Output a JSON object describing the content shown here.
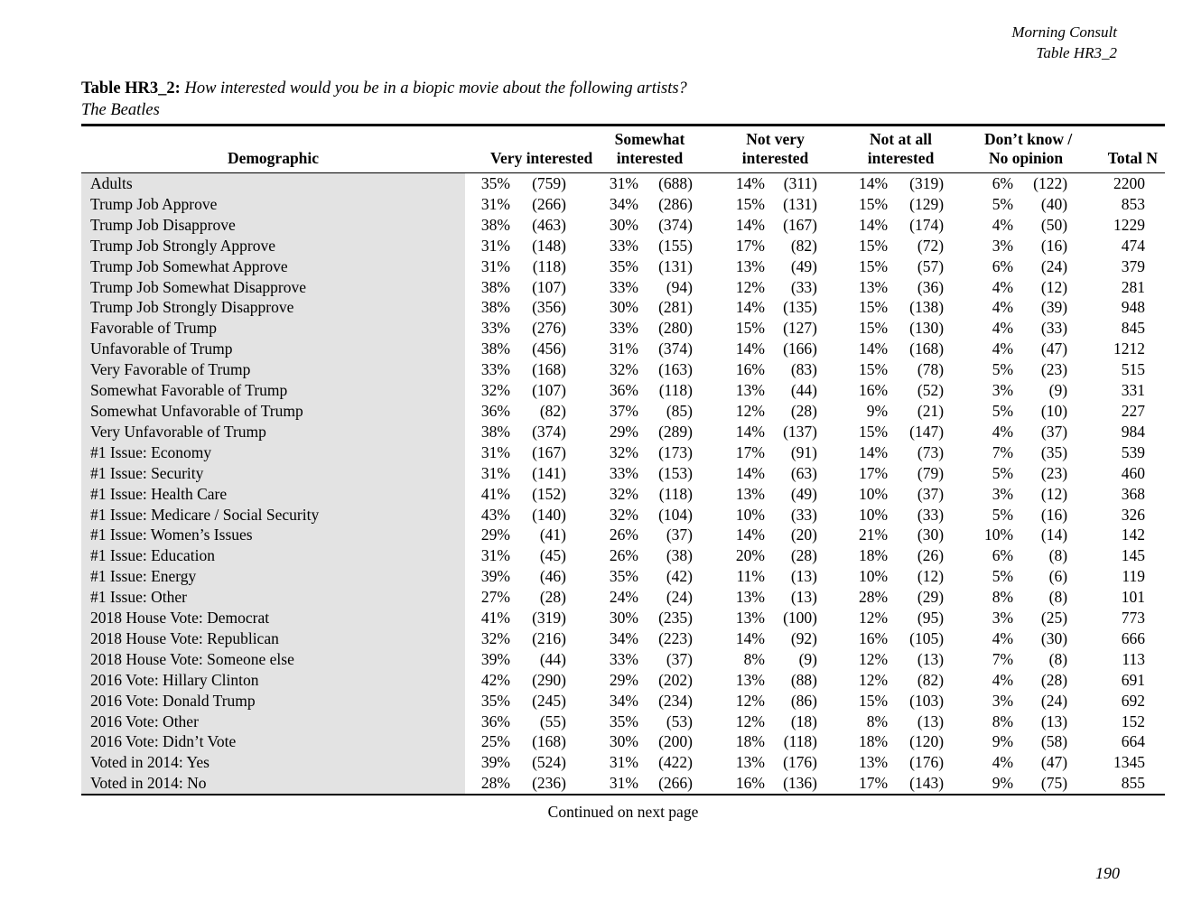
{
  "corner": {
    "publisher": "Morning Consult",
    "table_ref": "Table HR3_2"
  },
  "title": {
    "prefix": "Table HR3_2:",
    "question": "How interested would you be in a biopic movie about the following artists?",
    "subject": "The Beatles"
  },
  "table": {
    "headers": {
      "demographic": "Demographic",
      "groups": [
        {
          "line1": "",
          "line2": "Very interested"
        },
        {
          "line1": "Somewhat",
          "line2": "interested"
        },
        {
          "line1": "Not very",
          "line2": "interested"
        },
        {
          "line1": "Not at all",
          "line2": "interested"
        },
        {
          "line1": "Don’t know /",
          "line2": "No opinion"
        }
      ],
      "total": "Total N"
    },
    "rows": [
      {
        "demographic": "Adults",
        "values": [
          "35%",
          "(759)",
          "31%",
          "(688)",
          "14%",
          "(311)",
          "14%",
          "(319)",
          "6%",
          "(122)",
          "2200"
        ]
      },
      {
        "demographic": "Trump Job Approve",
        "values": [
          "31%",
          "(266)",
          "34%",
          "(286)",
          "15%",
          "(131)",
          "15%",
          "(129)",
          "5%",
          "(40)",
          "853"
        ]
      },
      {
        "demographic": "Trump Job Disapprove",
        "values": [
          "38%",
          "(463)",
          "30%",
          "(374)",
          "14%",
          "(167)",
          "14%",
          "(174)",
          "4%",
          "(50)",
          "1229"
        ]
      },
      {
        "demographic": "Trump Job Strongly Approve",
        "values": [
          "31%",
          "(148)",
          "33%",
          "(155)",
          "17%",
          "(82)",
          "15%",
          "(72)",
          "3%",
          "(16)",
          "474"
        ]
      },
      {
        "demographic": "Trump Job Somewhat Approve",
        "values": [
          "31%",
          "(118)",
          "35%",
          "(131)",
          "13%",
          "(49)",
          "15%",
          "(57)",
          "6%",
          "(24)",
          "379"
        ]
      },
      {
        "demographic": "Trump Job Somewhat Disapprove",
        "values": [
          "38%",
          "(107)",
          "33%",
          "(94)",
          "12%",
          "(33)",
          "13%",
          "(36)",
          "4%",
          "(12)",
          "281"
        ]
      },
      {
        "demographic": "Trump Job Strongly Disapprove",
        "values": [
          "38%",
          "(356)",
          "30%",
          "(281)",
          "14%",
          "(135)",
          "15%",
          "(138)",
          "4%",
          "(39)",
          "948"
        ]
      },
      {
        "demographic": "Favorable of Trump",
        "values": [
          "33%",
          "(276)",
          "33%",
          "(280)",
          "15%",
          "(127)",
          "15%",
          "(130)",
          "4%",
          "(33)",
          "845"
        ]
      },
      {
        "demographic": "Unfavorable of Trump",
        "values": [
          "38%",
          "(456)",
          "31%",
          "(374)",
          "14%",
          "(166)",
          "14%",
          "(168)",
          "4%",
          "(47)",
          "1212"
        ]
      },
      {
        "demographic": "Very Favorable of Trump",
        "values": [
          "33%",
          "(168)",
          "32%",
          "(163)",
          "16%",
          "(83)",
          "15%",
          "(78)",
          "5%",
          "(23)",
          "515"
        ]
      },
      {
        "demographic": "Somewhat Favorable of Trump",
        "values": [
          "32%",
          "(107)",
          "36%",
          "(118)",
          "13%",
          "(44)",
          "16%",
          "(52)",
          "3%",
          "(9)",
          "331"
        ]
      },
      {
        "demographic": "Somewhat Unfavorable of Trump",
        "values": [
          "36%",
          "(82)",
          "37%",
          "(85)",
          "12%",
          "(28)",
          "9%",
          "(21)",
          "5%",
          "(10)",
          "227"
        ]
      },
      {
        "demographic": "Very Unfavorable of Trump",
        "values": [
          "38%",
          "(374)",
          "29%",
          "(289)",
          "14%",
          "(137)",
          "15%",
          "(147)",
          "4%",
          "(37)",
          "984"
        ]
      },
      {
        "demographic": "#1 Issue: Economy",
        "values": [
          "31%",
          "(167)",
          "32%",
          "(173)",
          "17%",
          "(91)",
          "14%",
          "(73)",
          "7%",
          "(35)",
          "539"
        ]
      },
      {
        "demographic": "#1 Issue: Security",
        "values": [
          "31%",
          "(141)",
          "33%",
          "(153)",
          "14%",
          "(63)",
          "17%",
          "(79)",
          "5%",
          "(23)",
          "460"
        ]
      },
      {
        "demographic": "#1 Issue: Health Care",
        "values": [
          "41%",
          "(152)",
          "32%",
          "(118)",
          "13%",
          "(49)",
          "10%",
          "(37)",
          "3%",
          "(12)",
          "368"
        ]
      },
      {
        "demographic": "#1 Issue: Medicare / Social Security",
        "values": [
          "43%",
          "(140)",
          "32%",
          "(104)",
          "10%",
          "(33)",
          "10%",
          "(33)",
          "5%",
          "(16)",
          "326"
        ]
      },
      {
        "demographic": "#1 Issue: Women’s Issues",
        "values": [
          "29%",
          "(41)",
          "26%",
          "(37)",
          "14%",
          "(20)",
          "21%",
          "(30)",
          "10%",
          "(14)",
          "142"
        ]
      },
      {
        "demographic": "#1 Issue: Education",
        "values": [
          "31%",
          "(45)",
          "26%",
          "(38)",
          "20%",
          "(28)",
          "18%",
          "(26)",
          "6%",
          "(8)",
          "145"
        ]
      },
      {
        "demographic": "#1 Issue: Energy",
        "values": [
          "39%",
          "(46)",
          "35%",
          "(42)",
          "11%",
          "(13)",
          "10%",
          "(12)",
          "5%",
          "(6)",
          "119"
        ]
      },
      {
        "demographic": "#1 Issue: Other",
        "values": [
          "27%",
          "(28)",
          "24%",
          "(24)",
          "13%",
          "(13)",
          "28%",
          "(29)",
          "8%",
          "(8)",
          "101"
        ]
      },
      {
        "demographic": "2018 House Vote: Democrat",
        "values": [
          "41%",
          "(319)",
          "30%",
          "(235)",
          "13%",
          "(100)",
          "12%",
          "(95)",
          "3%",
          "(25)",
          "773"
        ]
      },
      {
        "demographic": "2018 House Vote: Republican",
        "values": [
          "32%",
          "(216)",
          "34%",
          "(223)",
          "14%",
          "(92)",
          "16%",
          "(105)",
          "4%",
          "(30)",
          "666"
        ]
      },
      {
        "demographic": "2018 House Vote: Someone else",
        "values": [
          "39%",
          "(44)",
          "33%",
          "(37)",
          "8%",
          "(9)",
          "12%",
          "(13)",
          "7%",
          "(8)",
          "113"
        ]
      },
      {
        "demographic": "2016 Vote: Hillary Clinton",
        "values": [
          "42%",
          "(290)",
          "29%",
          "(202)",
          "13%",
          "(88)",
          "12%",
          "(82)",
          "4%",
          "(28)",
          "691"
        ]
      },
      {
        "demographic": "2016 Vote: Donald Trump",
        "values": [
          "35%",
          "(245)",
          "34%",
          "(234)",
          "12%",
          "(86)",
          "15%",
          "(103)",
          "3%",
          "(24)",
          "692"
        ]
      },
      {
        "demographic": "2016 Vote: Other",
        "values": [
          "36%",
          "(55)",
          "35%",
          "(53)",
          "12%",
          "(18)",
          "8%",
          "(13)",
          "8%",
          "(13)",
          "152"
        ]
      },
      {
        "demographic": "2016 Vote: Didn’t Vote",
        "values": [
          "25%",
          "(168)",
          "30%",
          "(200)",
          "18%",
          "(118)",
          "18%",
          "(120)",
          "9%",
          "(58)",
          "664"
        ]
      },
      {
        "demographic": "Voted in 2014: Yes",
        "values": [
          "39%",
          "(524)",
          "31%",
          "(422)",
          "13%",
          "(176)",
          "13%",
          "(176)",
          "4%",
          "(47)",
          "1345"
        ]
      },
      {
        "demographic": "Voted in 2014: No",
        "values": [
          "28%",
          "(236)",
          "31%",
          "(266)",
          "16%",
          "(136)",
          "17%",
          "(143)",
          "9%",
          "(75)",
          "855"
        ]
      }
    ]
  },
  "footer": {
    "continued": "Continued on next page",
    "page_number": "190"
  }
}
